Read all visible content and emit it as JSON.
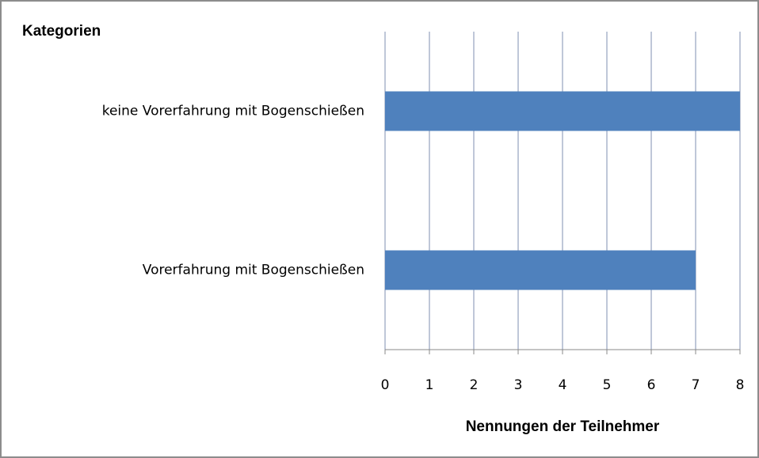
{
  "chart_data": {
    "type": "bar",
    "orientation": "horizontal",
    "categories": [
      "keine Vorerfahrung mit Bogenschießen",
      "Vorerfahrung mit Bogenschießen"
    ],
    "values": [
      8,
      7
    ],
    "color": "#4f81bd",
    "xlim": [
      0,
      8
    ],
    "xticks": [
      0,
      1,
      2,
      3,
      4,
      5,
      6,
      7,
      8
    ],
    "grid": true,
    "x_label": "Nennungen der Teilnehmer",
    "y_label": "Kategorien"
  }
}
